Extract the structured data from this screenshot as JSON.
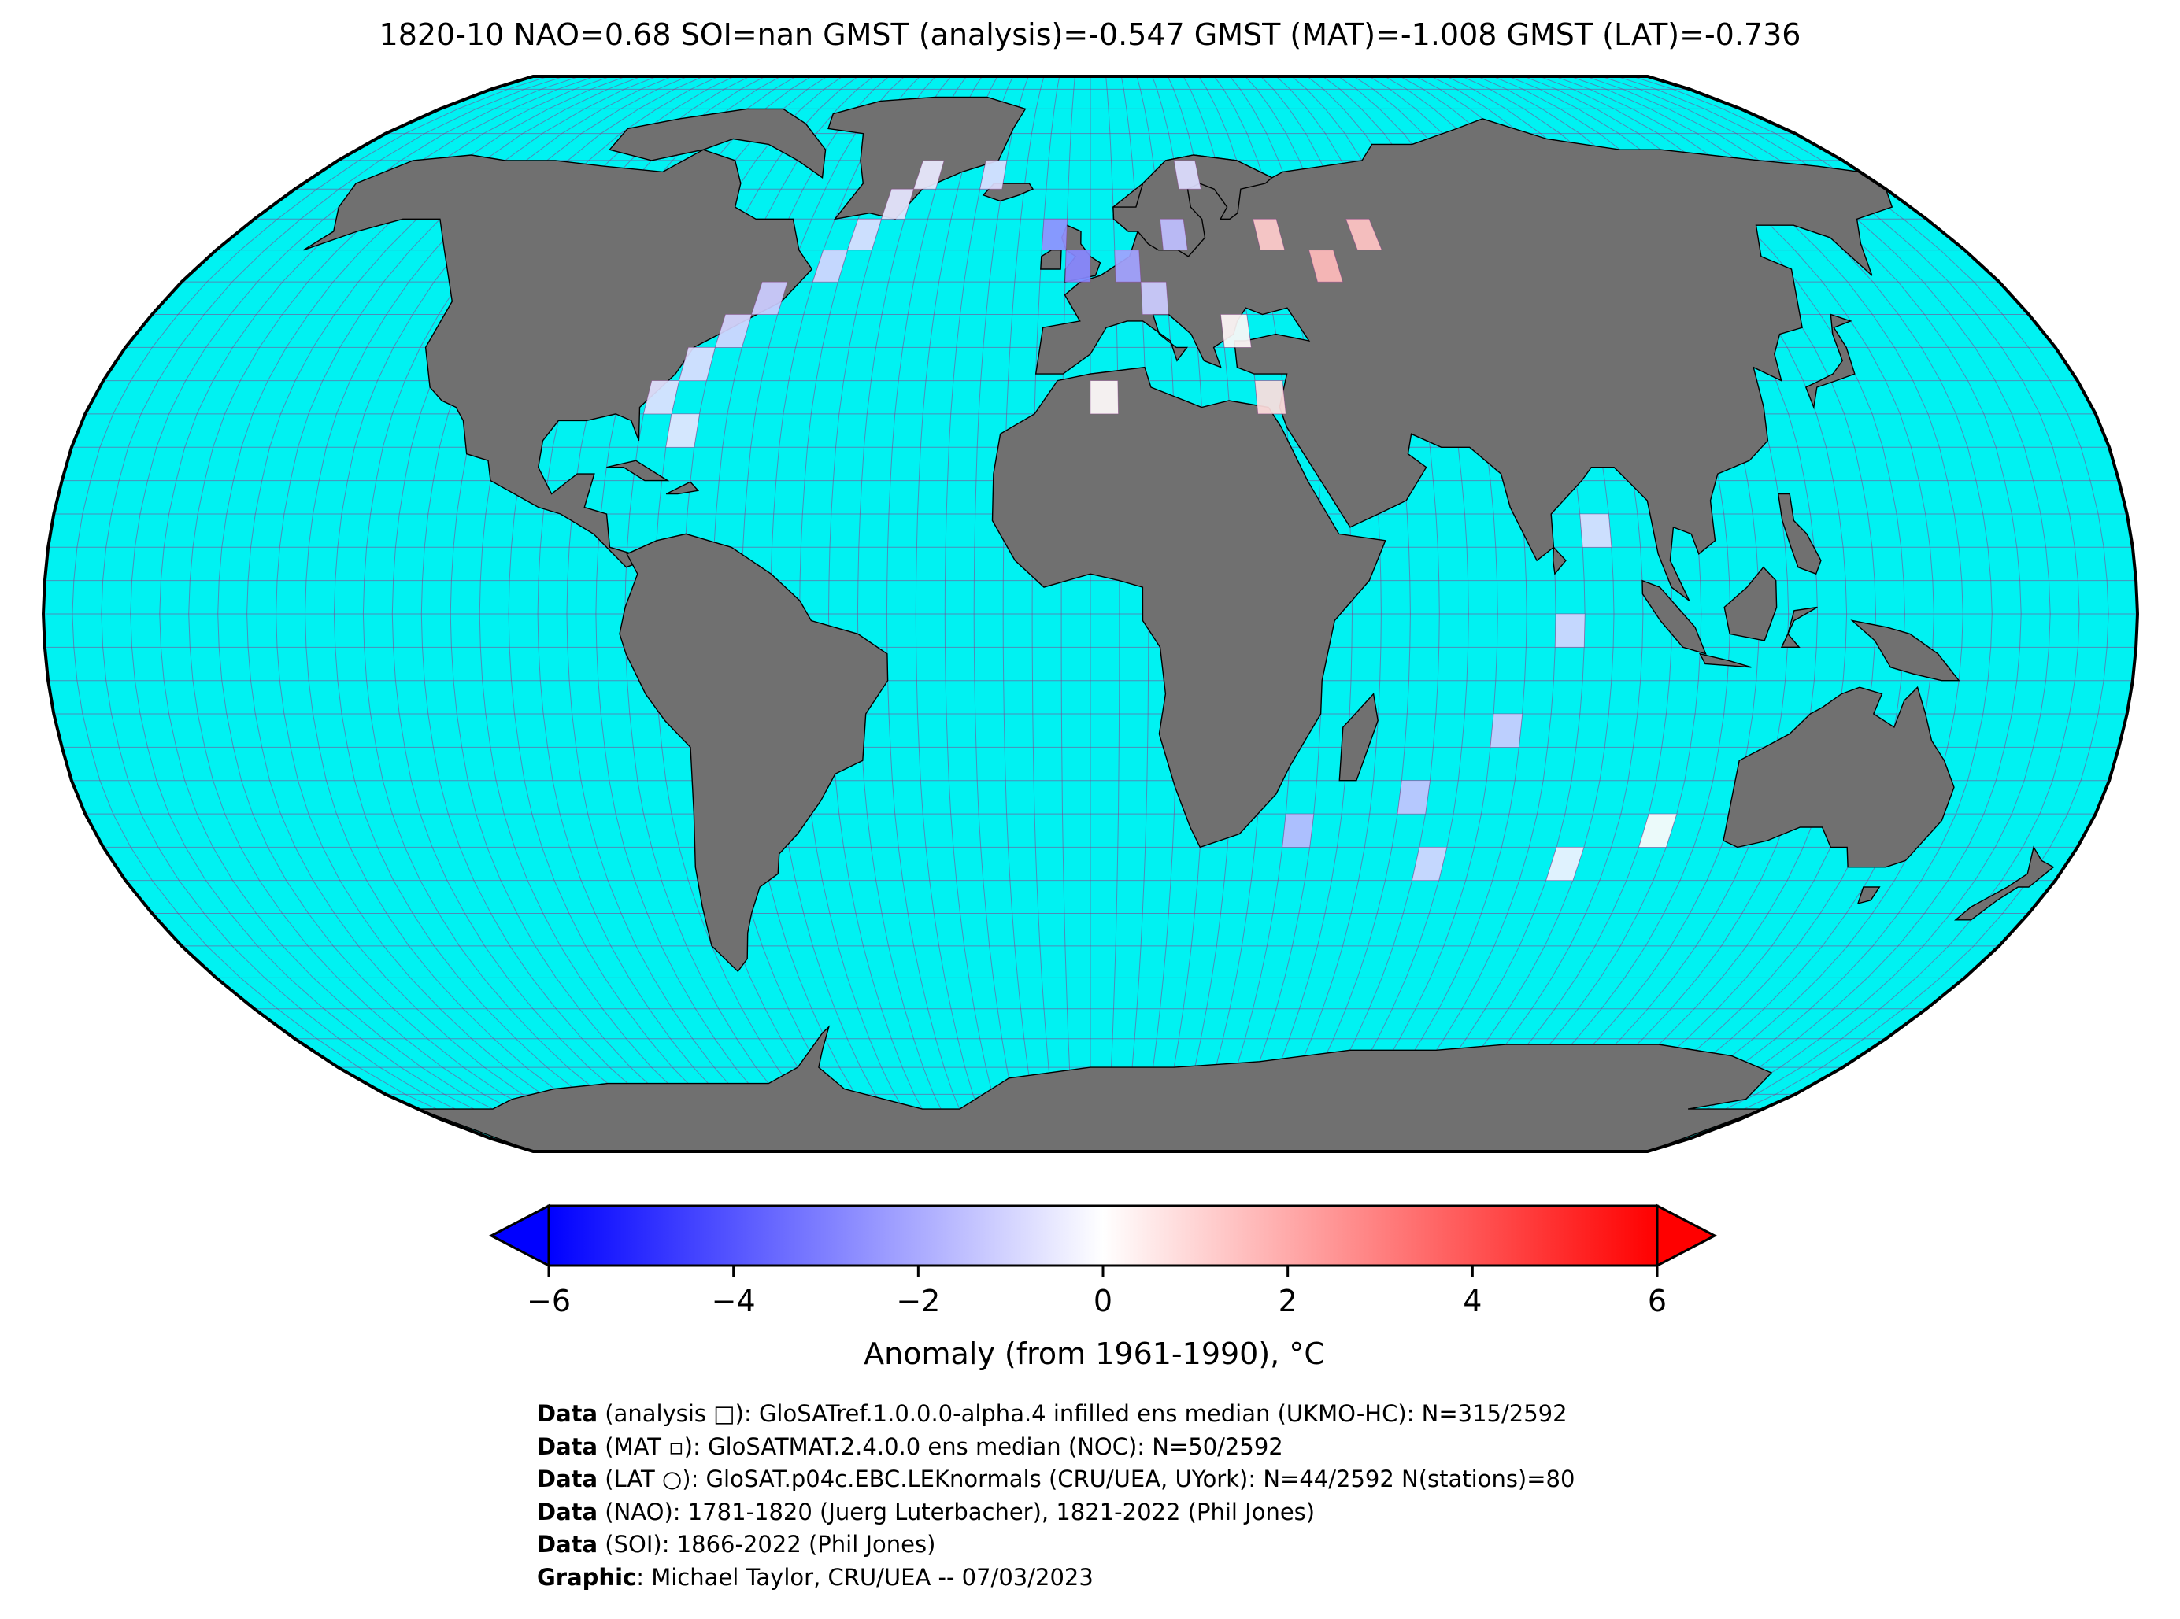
{
  "title": "1820-10 NAO=0.68 SOI=nan GMST (analysis)=-0.547 GMST (MAT)=-1.008 GMST (LAT)=-0.736",
  "colors": {
    "ocean": "#00f2f2",
    "land": "#707070",
    "grid": "#8a3a8a",
    "cold": "#0000ff",
    "warm": "#ff0000",
    "neutral": "#ffffff"
  },
  "colorbar": {
    "label": "Anomaly (from 1961-1990), °C",
    "min": -6,
    "max": 6,
    "ticks": [
      "−6",
      "−4",
      "−2",
      "0",
      "2",
      "4",
      "6"
    ],
    "extend": "both"
  },
  "footer": [
    {
      "key": "Data",
      "text": " (analysis □): GloSATref.1.0.0.0-alpha.4 infilled ens median (UKMO-HC): N=315/2592"
    },
    {
      "key": "Data",
      "text": " (MAT ▫): GloSATMAT.2.4.0.0 ens median (NOC): N=50/2592"
    },
    {
      "key": "Data",
      "text": " (LAT ○): GloSAT.p04c.EBC.LEKnormals (CRU/UEA, UYork): N=44/2592 N(stations)=80"
    },
    {
      "key": "Data",
      "text": " (NAO): 1781-1820 (Juerg Luterbacher), 1821-2022 (Phil Jones)"
    },
    {
      "key": "Data",
      "text": " (SOI): 1866-2022 (Phil Jones)"
    },
    {
      "key": "Graphic",
      "text": ": Michael Taylor, CRU/UEA -- 07/03/2023"
    }
  ],
  "map": {
    "projection": "Robinson",
    "grid_spacing_deg": 5,
    "anomaly_cells": [
      {
        "lon": -75,
        "lat": 25,
        "value": -0.6
      },
      {
        "lon": -80,
        "lat": 30,
        "value": -0.7
      },
      {
        "lon": -75,
        "lat": 35,
        "value": -0.8
      },
      {
        "lon": -70,
        "lat": 40,
        "value": -1.0
      },
      {
        "lon": -65,
        "lat": 45,
        "value": -1.2
      },
      {
        "lon": -55,
        "lat": 50,
        "value": -1.0
      },
      {
        "lon": -50,
        "lat": 55,
        "value": -0.8
      },
      {
        "lon": -45,
        "lat": 60,
        "value": -0.6
      },
      {
        "lon": -40,
        "lat": 65,
        "value": -0.5
      },
      {
        "lon": -25,
        "lat": 65,
        "value": -0.8
      },
      {
        "lon": -10,
        "lat": 55,
        "value": -2.6
      },
      {
        "lon": -5,
        "lat": 50,
        "value": -2.8
      },
      {
        "lon": 5,
        "lat": 50,
        "value": -2.2
      },
      {
        "lon": 10,
        "lat": 45,
        "value": -1.2
      },
      {
        "lon": 15,
        "lat": 55,
        "value": -1.5
      },
      {
        "lon": 20,
        "lat": 65,
        "value": -0.8
      },
      {
        "lon": 25,
        "lat": 40,
        "value": 0.2
      },
      {
        "lon": 35,
        "lat": 55,
        "value": 1.2
      },
      {
        "lon": 45,
        "lat": 50,
        "value": 1.6
      },
      {
        "lon": 55,
        "lat": 55,
        "value": 1.4
      },
      {
        "lon": 30,
        "lat": 30,
        "value": 0.8
      },
      {
        "lon": 0,
        "lat": 30,
        "value": 0.1
      },
      {
        "lon": 85,
        "lat": 10,
        "value": -0.8
      },
      {
        "lon": 80,
        "lat": -5,
        "value": -1.0
      },
      {
        "lon": 70,
        "lat": -20,
        "value": -1.2
      },
      {
        "lon": 55,
        "lat": -30,
        "value": -1.4
      },
      {
        "lon": 35,
        "lat": -35,
        "value": -1.6
      },
      {
        "lon": 60,
        "lat": -40,
        "value": -1.0
      },
      {
        "lon": 85,
        "lat": -40,
        "value": -0.3
      },
      {
        "lon": 100,
        "lat": -35,
        "value": 0.1
      }
    ]
  }
}
